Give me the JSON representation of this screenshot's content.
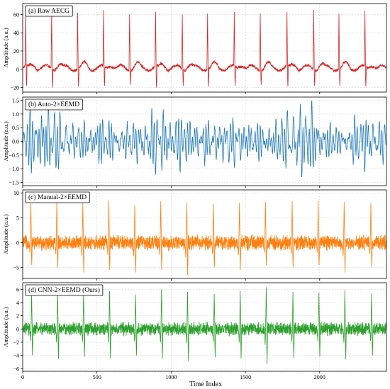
{
  "chart_data": {
    "type": "line",
    "xlabel": "Time Index",
    "x_ticks": [
      0,
      500,
      1000,
      1500,
      2000
    ],
    "xlim": [
      0,
      2450
    ],
    "n_samples": 2450,
    "grid": true,
    "panels": [
      {
        "label": "(a) Raw AECG",
        "ylabel": "Amplitude (a.u.)",
        "color": "#d62728",
        "ylim": [
          -25,
          72
        ],
        "y_ticks": [
          "60",
          "40",
          "20",
          "0",
          "−20"
        ],
        "y_tick_values": [
          60,
          40,
          20,
          0,
          -20
        ],
        "baseline_range": [
          -4,
          8
        ],
        "peaks": [
          {
            "x": 20,
            "value": 65,
            "trough": -18
          },
          {
            "x": 195,
            "value": 63,
            "trough": -20
          },
          {
            "x": 370,
            "value": 62,
            "trough": -19
          },
          {
            "x": 545,
            "value": 65,
            "trough": -18
          },
          {
            "x": 720,
            "value": 60,
            "trough": -17
          },
          {
            "x": 895,
            "value": 63,
            "trough": -20
          },
          {
            "x": 1075,
            "value": 60,
            "trough": -18
          },
          {
            "x": 1245,
            "value": 61,
            "trough": -19
          },
          {
            "x": 1425,
            "value": 63,
            "trough": -18
          },
          {
            "x": 1600,
            "value": 61,
            "trough": -17
          },
          {
            "x": 1780,
            "value": 63,
            "trough": -19
          },
          {
            "x": 1960,
            "value": 65,
            "trough": -18
          },
          {
            "x": 2130,
            "value": 61,
            "trough": -18
          },
          {
            "x": 2305,
            "value": 64,
            "trough": -19
          }
        ]
      },
      {
        "label": "(b) Auto-2×EEMD",
        "ylabel": "Amplitude (a.u.)",
        "color": "#1f77b4",
        "ylim": [
          -1.62,
          1.62
        ],
        "y_ticks": [
          "1.5",
          "1.0",
          "0.5",
          "0.0",
          "−0.5",
          "−1.0",
          "−1.5"
        ],
        "y_tick_values": [
          1.5,
          1.0,
          0.5,
          0.0,
          -0.5,
          -1.0,
          -1.5
        ],
        "oscillation_range": [
          -1.3,
          1.6
        ]
      },
      {
        "label": "(c) Manual-2×EEMD",
        "ylabel": "Amplitude (a.u.)",
        "color": "#ff7f0e",
        "ylim": [
          -7.2,
          10.6
        ],
        "y_ticks": [
          "10",
          "5",
          "0",
          "−5"
        ],
        "y_tick_values": [
          10,
          5,
          0,
          -5
        ],
        "noise_range": [
          -1.8,
          1.8
        ],
        "peaks": [
          {
            "x": 55,
            "value": 8.3,
            "trough": -4.5
          },
          {
            "x": 230,
            "value": 8.7,
            "trough": -5.0
          },
          {
            "x": 405,
            "value": 8.0,
            "trough": -6.0
          },
          {
            "x": 580,
            "value": 8.5,
            "trough": -5.5
          },
          {
            "x": 755,
            "value": 7.5,
            "trough": -6.0
          },
          {
            "x": 930,
            "value": 8.3,
            "trough": -5.5
          },
          {
            "x": 1105,
            "value": 8.0,
            "trough": -6.5
          },
          {
            "x": 1285,
            "value": 7.8,
            "trough": -5.0
          },
          {
            "x": 1460,
            "value": 8.0,
            "trough": -5.5
          },
          {
            "x": 1635,
            "value": 8.2,
            "trough": -4.5
          },
          {
            "x": 1815,
            "value": 8.3,
            "trough": -5.0
          },
          {
            "x": 1990,
            "value": 8.5,
            "trough": -4.5
          },
          {
            "x": 2165,
            "value": 8.2,
            "trough": -6.0
          },
          {
            "x": 2345,
            "value": 8.0,
            "trough": -5.0
          }
        ]
      },
      {
        "label": "(d) CNN-2×EEMD (Ours)",
        "ylabel": "Amplitude (a.u.)",
        "color": "#2ca02c",
        "ylim": [
          -6.4,
          7.0
        ],
        "y_ticks": [
          "6",
          "4",
          "2",
          "0",
          "−2",
          "−4",
          "−6"
        ],
        "y_tick_values": [
          6,
          4,
          2,
          0,
          -2,
          -4,
          -6
        ],
        "noise_range": [
          -1.2,
          1.2
        ],
        "peaks": [
          {
            "x": 60,
            "value": 5.4,
            "trough": -4.0
          },
          {
            "x": 235,
            "value": 5.8,
            "trough": -4.5
          },
          {
            "x": 410,
            "value": 5.6,
            "trough": -4.2
          },
          {
            "x": 585,
            "value": 5.7,
            "trough": -4.5
          },
          {
            "x": 760,
            "value": 5.2,
            "trough": -4.0
          },
          {
            "x": 935,
            "value": 6.0,
            "trough": -4.5
          },
          {
            "x": 1110,
            "value": 5.6,
            "trough": -4.8
          },
          {
            "x": 1290,
            "value": 5.3,
            "trough": -4.3
          },
          {
            "x": 1465,
            "value": 5.8,
            "trough": -4.5
          },
          {
            "x": 1640,
            "value": 6.3,
            "trough": -5.3
          },
          {
            "x": 1820,
            "value": 5.6,
            "trough": -4.4
          },
          {
            "x": 1995,
            "value": 5.5,
            "trough": -4.2
          },
          {
            "x": 2170,
            "value": 5.9,
            "trough": -4.6
          },
          {
            "x": 2350,
            "value": 5.4,
            "trough": -4.0
          }
        ]
      }
    ]
  }
}
